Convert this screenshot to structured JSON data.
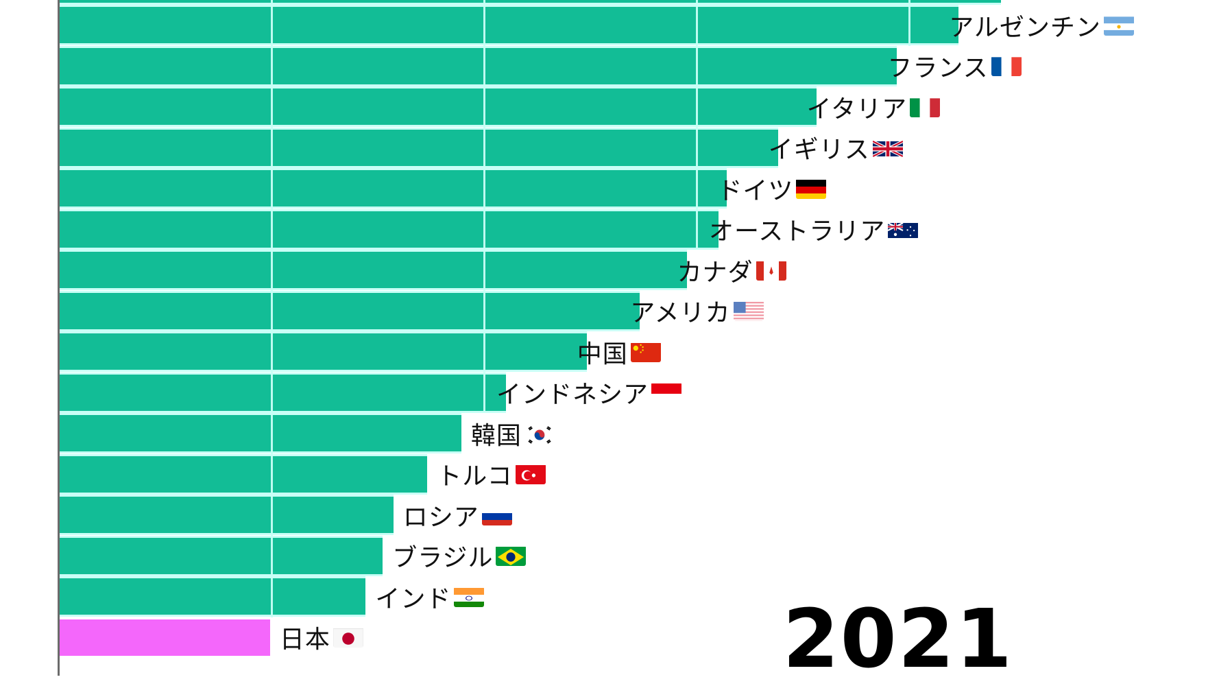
{
  "chart_data": {
    "type": "bar",
    "orientation": "horizontal",
    "title": "",
    "year_label": "2021",
    "xlabel": "",
    "ylabel": "",
    "grid": true,
    "gridline_unit_note": "values expressed in gridline units (first gridline = 1.0); tick labels not visible",
    "xlim": [
      0,
      4.6
    ],
    "gridlines": [
      1,
      2,
      3,
      4
    ],
    "categories": [
      "(top, cut off)",
      "アルゼンチン",
      "フランス",
      "イタリア",
      "イギリス",
      "ドイツ",
      "オーストラリア",
      "カナダ",
      "アメリカ",
      "中国",
      "インドネシア",
      "韓国",
      "トルコ",
      "ロシア",
      "ブラジル",
      "インド",
      "日本"
    ],
    "values": [
      4.43,
      4.23,
      3.94,
      3.56,
      3.38,
      3.14,
      3.1,
      2.95,
      2.73,
      2.48,
      2.1,
      1.89,
      1.73,
      1.57,
      1.52,
      1.44,
      0.99
    ],
    "colors": {
      "default": "#12bd96",
      "highlight": "#f467fb",
      "highlight_category": "日本"
    }
  },
  "bars": [
    {
      "label": "",
      "flag": "",
      "value": 4.43,
      "inside": true,
      "highlight": false
    },
    {
      "label": "アルゼンチン",
      "flag": "ar",
      "value": 4.23,
      "inside": true,
      "highlight": false
    },
    {
      "label": "フランス",
      "flag": "fr",
      "value": 3.94,
      "inside": true,
      "highlight": false
    },
    {
      "label": "イタリア",
      "flag": "it",
      "value": 3.56,
      "inside": true,
      "highlight": false
    },
    {
      "label": "イギリス",
      "flag": "gb",
      "value": 3.38,
      "inside": true,
      "highlight": false
    },
    {
      "label": "ドイツ",
      "flag": "de",
      "value": 3.14,
      "inside": true,
      "highlight": false
    },
    {
      "label": "オーストラリア",
      "flag": "au",
      "value": 3.1,
      "inside": true,
      "highlight": false
    },
    {
      "label": "カナダ",
      "flag": "ca",
      "value": 2.95,
      "inside": true,
      "highlight": false
    },
    {
      "label": "アメリカ",
      "flag": "us",
      "value": 2.73,
      "inside": true,
      "highlight": false
    },
    {
      "label": "中国",
      "flag": "cn",
      "value": 2.48,
      "inside": true,
      "highlight": false
    },
    {
      "label": "インドネシア",
      "flag": "id",
      "value": 2.1,
      "inside": true,
      "highlight": false
    },
    {
      "label": "韓国",
      "flag": "kr",
      "value": 1.89,
      "inside": false,
      "highlight": false
    },
    {
      "label": "トルコ",
      "flag": "tr",
      "value": 1.73,
      "inside": false,
      "highlight": false
    },
    {
      "label": "ロシア",
      "flag": "ru",
      "value": 1.57,
      "inside": false,
      "highlight": false
    },
    {
      "label": "ブラジル",
      "flag": "br",
      "value": 1.52,
      "inside": false,
      "highlight": false
    },
    {
      "label": "インド",
      "flag": "in",
      "value": 1.44,
      "inside": false,
      "highlight": false
    },
    {
      "label": "日本",
      "flag": "jp",
      "value": 0.99,
      "inside": false,
      "highlight": true
    }
  ],
  "year": "2021"
}
